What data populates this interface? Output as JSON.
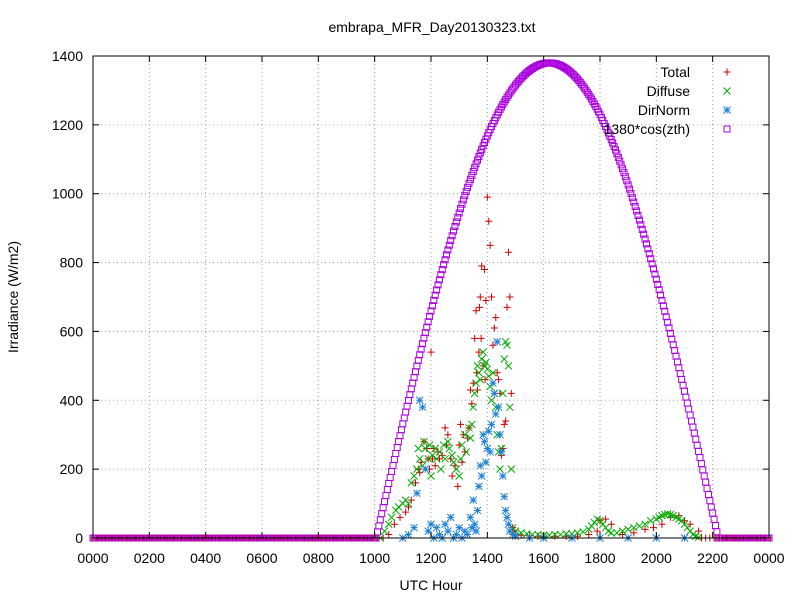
{
  "chart_data": {
    "type": "scatter",
    "title": "embrapa_MFR_Day20130323.txt",
    "xlabel": "UTC Hour",
    "ylabel": "Irradiance (W/m2)",
    "xlim": [
      0,
      24
    ],
    "ylim": [
      0,
      1400
    ],
    "x_tick_values": [
      0,
      2,
      4,
      6,
      8,
      10,
      12,
      14,
      16,
      18,
      20,
      22,
      24
    ],
    "x_tick_labels": [
      "0000",
      "0200",
      "0400",
      "0600",
      "0800",
      "1000",
      "1200",
      "1400",
      "1600",
      "1800",
      "2000",
      "2200",
      "0000"
    ],
    "y_ticks": [
      0,
      200,
      400,
      600,
      800,
      1000,
      1200,
      1400
    ],
    "grid": true,
    "legend_position": "top-right",
    "series": [
      {
        "name": "Total",
        "marker": "plus",
        "color": "#cc0000",
        "x": [
          10.3,
          10.5,
          10.7,
          10.9,
          11.1,
          11.2,
          11.3,
          11.45,
          11.55,
          11.6,
          11.65,
          11.75,
          11.85,
          11.9,
          11.95,
          12.0,
          12.05,
          12.1,
          12.15,
          12.25,
          12.3,
          12.4,
          12.5,
          12.55,
          12.6,
          12.7,
          12.75,
          12.85,
          12.95,
          13.0,
          13.05,
          13.1,
          13.15,
          13.2,
          13.3,
          13.35,
          13.4,
          13.45,
          13.5,
          13.55,
          13.6,
          13.62,
          13.65,
          13.7,
          13.72,
          13.75,
          13.78,
          13.8,
          13.85,
          13.9,
          13.92,
          13.95,
          14.0,
          14.05,
          14.1,
          14.15,
          14.2,
          14.25,
          14.3,
          14.35,
          14.4,
          14.45,
          14.5,
          14.55,
          14.6,
          14.65,
          14.7,
          14.75,
          14.8,
          14.85,
          14.9,
          14.95,
          15.0,
          15.2,
          15.5,
          15.8,
          16.0,
          16.4,
          16.8,
          17.2,
          17.6,
          17.9,
          18.0,
          18.2,
          18.4,
          18.8,
          19.2,
          19.6,
          19.9,
          20.2,
          20.5,
          20.8,
          21.0,
          21.2,
          21.5
        ],
        "y": [
          0,
          10,
          40,
          60,
          75,
          90,
          110,
          160,
          200,
          190,
          220,
          280,
          260,
          230,
          200,
          540,
          230,
          260,
          210,
          250,
          230,
          240,
          320,
          270,
          300,
          230,
          180,
          210,
          150,
          270,
          330,
          220,
          300,
          250,
          290,
          320,
          430,
          390,
          450,
          580,
          660,
          480,
          430,
          540,
          670,
          700,
          580,
          790,
          500,
          780,
          460,
          690,
          990,
          920,
          850,
          700,
          560,
          610,
          640,
          480,
          460,
          420,
          240,
          260,
          330,
          340,
          670,
          830,
          700,
          420,
          30,
          20,
          10,
          8,
          6,
          5,
          5,
          5,
          5,
          5,
          10,
          20,
          50,
          55,
          40,
          10,
          15,
          25,
          30,
          40,
          60,
          65,
          50,
          40,
          20
        ],
        "noise": 0
      },
      {
        "name": "Diffuse",
        "marker": "cross",
        "color": "#00aa00",
        "x": [
          10.2,
          10.35,
          10.5,
          10.6,
          10.75,
          10.85,
          11.0,
          11.1,
          11.2,
          11.3,
          11.4,
          11.5,
          11.55,
          11.6,
          11.7,
          11.75,
          11.8,
          11.9,
          11.95,
          12.0,
          12.05,
          12.15,
          12.2,
          12.3,
          12.35,
          12.45,
          12.5,
          12.6,
          12.65,
          12.75,
          12.8,
          12.9,
          13.0,
          13.05,
          13.1,
          13.2,
          13.25,
          13.35,
          13.4,
          13.45,
          13.5,
          13.55,
          13.6,
          13.65,
          13.7,
          13.75,
          13.8,
          13.85,
          13.9,
          13.95,
          14.0,
          14.05,
          14.1,
          14.15,
          14.2,
          14.25,
          14.3,
          14.35,
          14.4,
          14.45,
          14.5,
          14.55,
          14.6,
          14.65,
          14.7,
          14.75,
          14.8,
          14.85,
          14.9,
          15.0,
          15.2,
          15.4,
          15.6,
          15.8,
          16.0,
          16.2,
          16.4,
          16.6,
          16.8,
          17.0,
          17.2,
          17.4,
          17.6,
          17.7,
          17.8,
          17.9,
          18.0,
          18.1,
          18.2,
          18.3,
          18.4,
          18.6,
          18.8,
          19.0,
          19.2,
          19.4,
          19.6,
          19.8,
          20.0,
          20.1,
          20.2,
          20.3,
          20.4,
          20.5,
          20.6,
          20.7,
          20.8,
          20.9,
          21.0,
          21.1,
          21.2,
          21.3,
          21.4,
          21.5
        ],
        "y": [
          0,
          20,
          40,
          60,
          80,
          90,
          100,
          110,
          100,
          160,
          180,
          200,
          260,
          230,
          210,
          280,
          260,
          230,
          270,
          180,
          240,
          260,
          230,
          250,
          200,
          270,
          230,
          280,
          260,
          240,
          220,
          200,
          180,
          230,
          270,
          300,
          250,
          320,
          290,
          330,
          380,
          420,
          450,
          500,
          480,
          460,
          520,
          540,
          500,
          510,
          490,
          470,
          440,
          400,
          480,
          420,
          380,
          300,
          250,
          200,
          260,
          420,
          520,
          570,
          560,
          500,
          380,
          200,
          30,
          20,
          15,
          12,
          10,
          10,
          8,
          8,
          10,
          10,
          12,
          12,
          15,
          18,
          25,
          35,
          45,
          55,
          50,
          40,
          30,
          20,
          15,
          15,
          20,
          25,
          30,
          35,
          40,
          50,
          55,
          60,
          65,
          68,
          70,
          68,
          65,
          60,
          55,
          50,
          40,
          30,
          20,
          10,
          5,
          2
        ],
        "noise": 0
      },
      {
        "name": "DirNorm",
        "marker": "star",
        "color": "#1e7fd7",
        "x": [
          11.0,
          11.2,
          11.4,
          11.5,
          11.6,
          11.7,
          11.8,
          11.9,
          12.0,
          12.1,
          12.2,
          12.3,
          12.4,
          12.5,
          12.6,
          12.7,
          12.8,
          12.9,
          13.0,
          13.1,
          13.2,
          13.3,
          13.4,
          13.45,
          13.5,
          13.55,
          13.6,
          13.65,
          13.7,
          13.75,
          13.8,
          13.85,
          13.9,
          13.95,
          14.0,
          14.05,
          14.1,
          14.15,
          14.2,
          14.25,
          14.3,
          14.35,
          14.4,
          14.45,
          14.5,
          14.55,
          14.6,
          14.65,
          14.7,
          14.75,
          14.8,
          14.9,
          15.0,
          15.5,
          16.0,
          17.0,
          18.0,
          19.0,
          20.0,
          21.0
        ],
        "y": [
          0,
          10,
          30,
          130,
          400,
          380,
          200,
          20,
          40,
          0,
          30,
          10,
          0,
          40,
          20,
          60,
          0,
          10,
          30,
          0,
          20,
          10,
          60,
          30,
          110,
          40,
          20,
          80,
          150,
          210,
          180,
          300,
          280,
          220,
          260,
          310,
          250,
          330,
          450,
          420,
          360,
          570,
          380,
          300,
          250,
          180,
          120,
          80,
          60,
          40,
          20,
          10,
          5,
          0,
          0,
          0,
          0,
          0,
          0,
          0
        ],
        "noise": 0
      },
      {
        "name": "1380*cos(zth)",
        "marker": "square",
        "color": "#aa00dd",
        "curve": {
          "start": 10.05,
          "peak": 16.2,
          "end": 22.2,
          "max": 1380
        }
      }
    ]
  }
}
